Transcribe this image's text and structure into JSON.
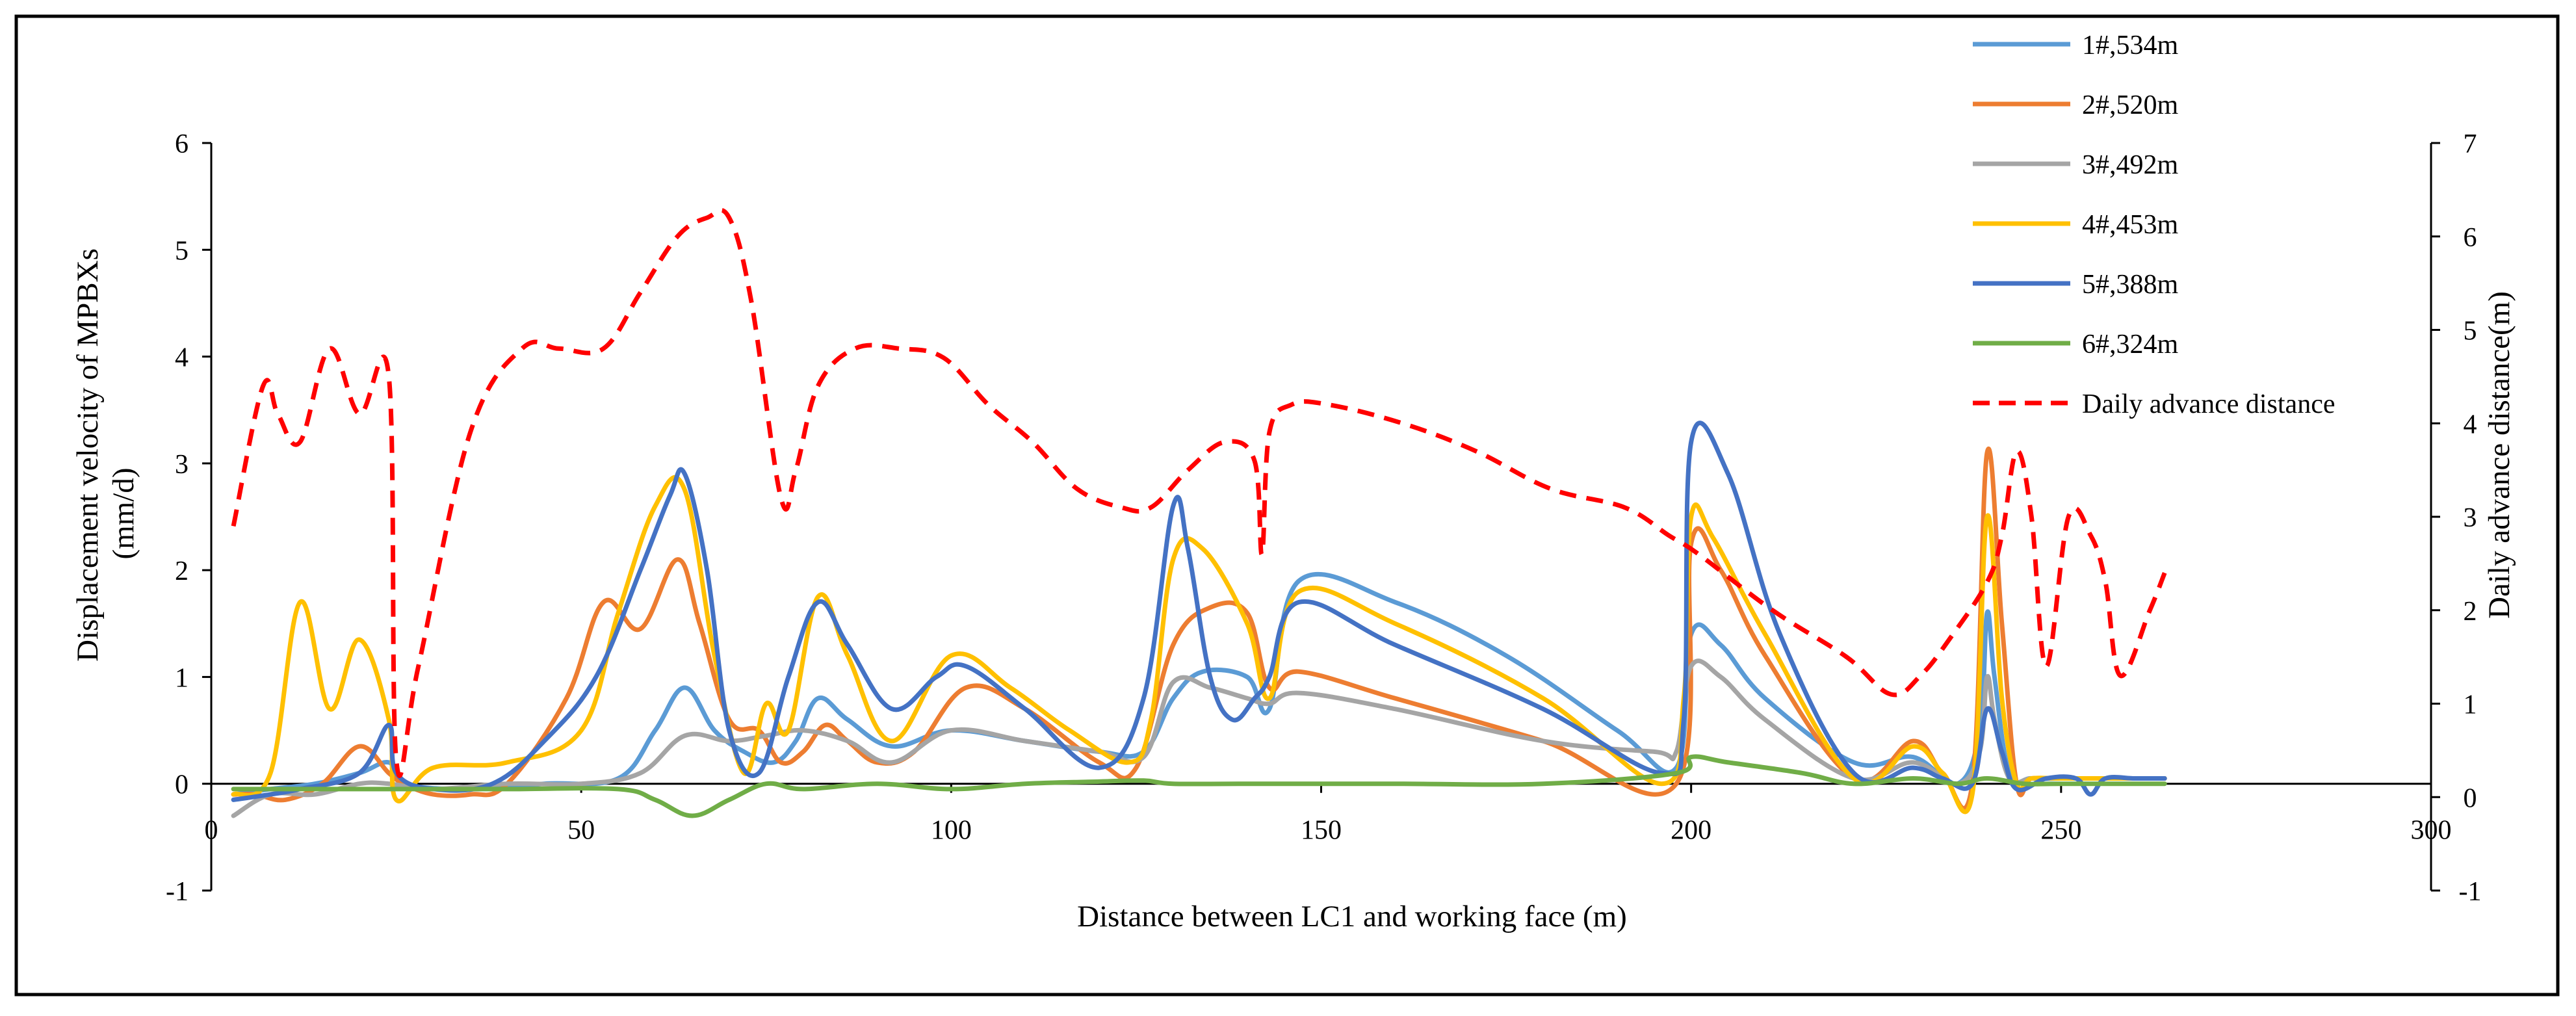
{
  "chart_data": {
    "type": "line",
    "xlabel": "Distance between LC1 and working face (m)",
    "ylabel_left": "Displacement velocity  of MPBXs",
    "ylabel_left_unit": "(mm/d)",
    "ylabel_right": "Daily advance distance(m)",
    "xlim": [
      0,
      300
    ],
    "ylim_left": [
      -1,
      6
    ],
    "ylim_right": [
      -1,
      7
    ],
    "x_ticks": [
      0,
      50,
      100,
      150,
      200,
      250,
      300
    ],
    "y_left_ticks": [
      -1,
      0,
      1,
      2,
      3,
      4,
      5,
      6
    ],
    "y_right_ticks": [
      -1,
      0,
      1,
      2,
      3,
      4,
      5,
      6,
      7
    ],
    "legend_position": "top-right",
    "series": [
      {
        "name": "1#,534m",
        "axis": "left",
        "color": "#5B9BD5",
        "dash": false,
        "x": [
          3,
          8,
          14,
          20,
          24,
          26,
          35,
          45,
          55,
          60,
          64,
          68,
          72,
          76,
          79,
          82,
          86,
          92,
          100,
          110,
          120,
          126,
          130,
          134,
          140,
          143,
          147,
          160,
          175,
          190,
          198,
          200,
          204,
          210,
          222,
          230,
          236,
          239,
          240,
          241,
          243,
          246,
          250,
          256,
          260,
          264
        ],
        "values": [
          -0.1,
          -0.05,
          0,
          0.1,
          0.2,
          0,
          -0.05,
          0,
          0.05,
          0.5,
          0.9,
          0.5,
          0.3,
          0.2,
          0.4,
          0.8,
          0.6,
          0.35,
          0.5,
          0.4,
          0.3,
          0.3,
          0.8,
          1.05,
          1.0,
          0.7,
          1.9,
          1.7,
          1.2,
          0.5,
          0.15,
          1.4,
          1.3,
          0.8,
          0.2,
          0.25,
          0,
          0.5,
          1.6,
          1.0,
          0.1,
          0.05,
          0.05,
          0.05,
          0.05,
          0.05
        ]
      },
      {
        "name": "2#,520m",
        "axis": "left",
        "color": "#ED7D31",
        "dash": false,
        "x": [
          3,
          6,
          10,
          15,
          20,
          24,
          26,
          30,
          35,
          40,
          48,
          53,
          58,
          63,
          66,
          70,
          74,
          77,
          80,
          83,
          86,
          90,
          95,
          102,
          110,
          120,
          125,
          130,
          135,
          140,
          143,
          147,
          160,
          180,
          198,
          200,
          204,
          210,
          222,
          230,
          234,
          238,
          240,
          242,
          244,
          246,
          250,
          256,
          260,
          264
        ],
        "values": [
          -0.1,
          -0.1,
          -0.15,
          0,
          0.35,
          0.1,
          0,
          -0.1,
          -0.1,
          0,
          0.8,
          1.7,
          1.45,
          2.1,
          1.5,
          0.6,
          0.5,
          0.2,
          0.3,
          0.55,
          0.4,
          0.2,
          0.3,
          0.9,
          0.7,
          0.2,
          0.15,
          1.3,
          1.65,
          1.6,
          0.9,
          1.05,
          0.8,
          0.4,
          0,
          2.25,
          2.0,
          1.2,
          0.05,
          0.4,
          0.1,
          0,
          3.1,
          1.5,
          0,
          0.05,
          0.05,
          0.05,
          0.05,
          0.05
        ]
      },
      {
        "name": "3#,492m",
        "axis": "left",
        "color": "#A5A5A5",
        "dash": false,
        "x": [
          3,
          8,
          14,
          20,
          24,
          30,
          40,
          50,
          58,
          64,
          70,
          75,
          80,
          86,
          92,
          100,
          110,
          120,
          126,
          130,
          135,
          140,
          143,
          147,
          160,
          180,
          195,
          198,
          200,
          204,
          210,
          222,
          230,
          236,
          239,
          240,
          241,
          243,
          246,
          250,
          256,
          260,
          264
        ],
        "values": [
          -0.3,
          -0.1,
          -0.1,
          0,
          0,
          -0.05,
          0,
          0,
          0.1,
          0.45,
          0.4,
          0.45,
          0.5,
          0.4,
          0.2,
          0.5,
          0.4,
          0.3,
          0.25,
          0.95,
          0.9,
          0.8,
          0.75,
          0.85,
          0.7,
          0.4,
          0.3,
          0.3,
          1.1,
          1.0,
          0.6,
          0.05,
          0.2,
          0,
          0.3,
          1.0,
          0.6,
          0.05,
          0.05,
          0.05,
          0.05,
          0.05,
          0.05
        ]
      },
      {
        "name": "4#,453m",
        "axis": "left",
        "color": "#FFC000",
        "dash": false,
        "x": [
          3,
          8,
          12,
          16,
          20,
          24,
          25,
          30,
          40,
          50,
          55,
          60,
          64,
          68,
          72,
          75,
          78,
          82,
          86,
          92,
          100,
          108,
          116,
          124,
          127,
          130,
          134,
          140,
          143,
          147,
          160,
          180,
          196,
          199,
          200,
          203,
          210,
          222,
          230,
          234,
          238,
          240,
          242,
          244,
          246,
          250,
          256,
          260,
          264
        ],
        "values": [
          -0.1,
          0.1,
          1.7,
          0.7,
          1.35,
          0.6,
          -0.15,
          0.15,
          0.2,
          0.5,
          1.6,
          2.6,
          2.75,
          1.2,
          0.1,
          0.75,
          0.5,
          1.75,
          1.2,
          0.4,
          1.2,
          0.9,
          0.5,
          0.2,
          0.6,
          2.1,
          2.2,
          1.5,
          0.8,
          1.8,
          1.5,
          0.8,
          0,
          0.8,
          2.5,
          2.3,
          1.4,
          0.05,
          0.35,
          0.1,
          -0.1,
          2.5,
          0.8,
          0,
          0.05,
          0.05,
          0.05,
          0.05,
          0.05
        ]
      },
      {
        "name": "5#,388m",
        "axis": "left",
        "color": "#4472C4",
        "dash": false,
        "x": [
          3,
          8,
          12,
          20,
          24,
          25,
          30,
          38,
          45,
          52,
          58,
          62,
          64,
          67,
          70,
          74,
          78,
          82,
          86,
          92,
          98,
          102,
          110,
          120,
          126,
          130,
          132,
          135,
          138,
          141,
          143,
          147,
          160,
          180,
          196,
          199,
          200,
          205,
          212,
          222,
          230,
          234,
          238,
          240,
          242,
          244,
          248,
          252,
          254,
          256,
          260,
          264
        ],
        "values": [
          -0.15,
          -0.1,
          -0.05,
          0.1,
          0.55,
          0.1,
          -0.05,
          0,
          0.4,
          1.0,
          2.0,
          2.7,
          2.9,
          2.0,
          0.5,
          0.1,
          1.0,
          1.7,
          1.3,
          0.7,
          1.0,
          1.1,
          0.7,
          0.15,
          0.8,
          2.6,
          2.2,
          1.0,
          0.6,
          0.8,
          1.0,
          1.7,
          1.3,
          0.7,
          0.1,
          0.6,
          3.2,
          2.9,
          1.4,
          0.1,
          0.15,
          0.05,
          0,
          0.7,
          0.3,
          -0.05,
          0.05,
          0.05,
          -0.1,
          0.05,
          0.05,
          0.05
        ]
      },
      {
        "name": "6#,324m",
        "axis": "left",
        "color": "#70AD47",
        "dash": false,
        "x": [
          3,
          15,
          25,
          40,
          55,
          60,
          65,
          70,
          75,
          80,
          90,
          100,
          110,
          120,
          126,
          130,
          140,
          160,
          180,
          198,
          200,
          205,
          215,
          222,
          230,
          236,
          240,
          245,
          250,
          264
        ],
        "values": [
          -0.05,
          -0.05,
          -0.05,
          -0.05,
          -0.05,
          -0.15,
          -0.3,
          -0.15,
          0,
          -0.05,
          0,
          -0.05,
          0,
          0.02,
          0.03,
          0,
          0,
          0,
          0,
          0.1,
          0.25,
          0.2,
          0.1,
          0,
          0.05,
          0,
          0.05,
          0,
          0,
          0
        ]
      },
      {
        "name": "Daily advance distance",
        "axis": "right",
        "color": "#FF0000",
        "dash": true,
        "x": [
          3,
          7,
          9,
          12,
          16,
          20,
          24,
          25,
          28,
          35,
          42,
          47,
          53,
          58,
          63,
          67,
          70,
          73,
          77,
          79,
          82,
          87,
          93,
          99,
          105,
          111,
          117,
          123,
          127,
          132,
          137,
          141,
          142,
          143,
          146,
          151,
          161,
          171,
          181,
          191,
          197,
          201,
          211,
          221,
          227,
          231,
          235,
          240,
          242,
          244,
          246,
          248,
          251,
          254,
          256,
          258,
          262,
          264
        ],
        "values": [
          2.9,
          4.4,
          4.1,
          3.8,
          4.8,
          4.1,
          4.5,
          0.4,
          1.4,
          3.9,
          4.8,
          4.8,
          4.8,
          5.4,
          6.0,
          6.2,
          6.2,
          5.3,
          3.2,
          3.5,
          4.4,
          4.8,
          4.8,
          4.7,
          4.2,
          3.8,
          3.3,
          3.1,
          3.1,
          3.5,
          3.8,
          3.6,
          2.6,
          3.9,
          4.2,
          4.2,
          4.0,
          3.7,
          3.3,
          3.1,
          2.8,
          2.6,
          2.0,
          1.5,
          1.1,
          1.3,
          1.7,
          2.3,
          2.8,
          3.7,
          3.0,
          1.4,
          3.0,
          2.8,
          2.3,
          1.3,
          2.0,
          2.4
        ]
      }
    ]
  }
}
